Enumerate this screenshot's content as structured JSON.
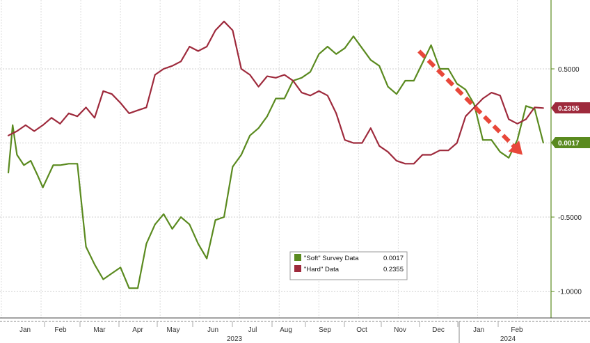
{
  "chart_data": {
    "type": "line",
    "title": "",
    "xlabel": "",
    "ylabel": "",
    "ylim": [
      -1.1,
      0.95
    ],
    "y_ticks": [
      0.5,
      0,
      -0.5,
      -1.0
    ],
    "y_tick_labels": [
      "0.5000",
      "",
      "-0.5000",
      "-1.0000"
    ],
    "x_range": [
      0,
      31.5
    ],
    "month_labels": [
      "Jan",
      "Feb",
      "Mar",
      "Apr",
      "May",
      "Jun",
      "Jul",
      "Aug",
      "Sep",
      "Oct",
      "Nov",
      "Dec",
      "Jan",
      "Feb"
    ],
    "year_labels": [
      {
        "label": "2023",
        "month_index": 6
      },
      {
        "label": "2024",
        "month_index": 12.5
      }
    ],
    "grid": true,
    "legend_position": "bottom-center",
    "series": [
      {
        "name": "\"Soft\" Survey Data",
        "last_label": "0.0017",
        "color": "#5a8a1f",
        "x": [
          0,
          0.25,
          0.5,
          0.9,
          1.3,
          1.7,
          2.0,
          2.6,
          3.0,
          3.5,
          4.0,
          4.5,
          5.0,
          5.5,
          6.0,
          6.5,
          7.0,
          7.5,
          8.0,
          8.5,
          9.0,
          9.5,
          10.0,
          10.5,
          11.0,
          11.5,
          12.0,
          12.5,
          13.0,
          13.5,
          14.0,
          14.5,
          15.0,
          15.5,
          16.0,
          16.5,
          17.0,
          17.5,
          18.0,
          18.5,
          19.0,
          19.5,
          20.0,
          20.5,
          21.0,
          21.5,
          22.0,
          22.5,
          23.0,
          23.5,
          24.0,
          24.5,
          25.0,
          25.5,
          26.0,
          26.5,
          27.0,
          27.5,
          28.0,
          28.5,
          29.0,
          29.5,
          30.0,
          30.5,
          31.0
        ],
        "values": [
          -0.2,
          0.12,
          -0.08,
          -0.15,
          -0.12,
          -0.22,
          -0.3,
          -0.15,
          -0.15,
          -0.14,
          -0.14,
          -0.7,
          -0.82,
          -0.92,
          -0.88,
          -0.84,
          -0.98,
          -0.98,
          -0.68,
          -0.55,
          -0.48,
          -0.58,
          -0.5,
          -0.55,
          -0.68,
          -0.78,
          -0.52,
          -0.5,
          -0.16,
          -0.08,
          0.05,
          0.1,
          0.18,
          0.3,
          0.3,
          0.42,
          0.44,
          0.48,
          0.6,
          0.65,
          0.6,
          0.64,
          0.72,
          0.64,
          0.56,
          0.52,
          0.38,
          0.33,
          0.42,
          0.42,
          0.54,
          0.66,
          0.5,
          0.5,
          0.4,
          0.36,
          0.26,
          0.02,
          0.02,
          -0.06,
          -0.1,
          0.02,
          0.25,
          0.23,
          0.0017
        ]
      },
      {
        "name": "\"Hard\" Data",
        "last_label": "0.2355",
        "color": "#9e2a3c",
        "x": [
          0,
          0.5,
          1.0,
          1.5,
          2.0,
          2.5,
          3.0,
          3.5,
          4.0,
          4.5,
          5.0,
          5.5,
          6.0,
          6.5,
          7.0,
          7.5,
          8.0,
          8.5,
          9.0,
          9.5,
          10.0,
          10.5,
          11.0,
          11.5,
          12.0,
          12.5,
          13.0,
          13.5,
          14.0,
          14.5,
          15.0,
          15.5,
          16.0,
          16.5,
          17.0,
          17.5,
          18.0,
          18.5,
          19.0,
          19.5,
          20.0,
          20.5,
          21.0,
          21.5,
          22.0,
          22.5,
          23.0,
          23.5,
          24.0,
          24.5,
          25.0,
          25.5,
          26.0,
          26.5,
          27.0,
          27.5,
          28.0,
          28.5,
          29.0,
          29.5,
          30.0,
          30.5,
          31.0
        ],
        "values": [
          0.05,
          0.08,
          0.12,
          0.08,
          0.12,
          0.17,
          0.13,
          0.2,
          0.18,
          0.24,
          0.17,
          0.35,
          0.33,
          0.27,
          0.2,
          0.22,
          0.24,
          0.46,
          0.5,
          0.52,
          0.55,
          0.65,
          0.62,
          0.65,
          0.76,
          0.82,
          0.76,
          0.5,
          0.46,
          0.38,
          0.45,
          0.44,
          0.46,
          0.42,
          0.34,
          0.32,
          0.35,
          0.32,
          0.2,
          0.02,
          0.0,
          0.0,
          0.1,
          -0.02,
          -0.06,
          -0.12,
          -0.14,
          -0.14,
          -0.08,
          -0.08,
          -0.05,
          -0.05,
          0.0,
          0.18,
          0.24,
          0.3,
          0.34,
          0.32,
          0.16,
          0.13,
          0.16,
          0.24,
          0.2355
        ]
      }
    ],
    "annotation": {
      "type": "arrow",
      "style": "dashed",
      "color": "#e8473a",
      "from": {
        "x": 23.8,
        "y": 0.62
      },
      "to": {
        "x": 29.8,
        "y": -0.08
      }
    }
  },
  "legend": {
    "items": [
      {
        "name": "\"Soft\" Survey Data",
        "value": "0.0017",
        "color": "#5a8a1f"
      },
      {
        "name": "\"Hard\" Data",
        "value": "0.2355",
        "color": "#9e2a3c"
      }
    ]
  },
  "tags": [
    {
      "value": "0.2355",
      "color": "#9e2a3c"
    },
    {
      "value": "0.0017",
      "color": "#5a8a1f"
    }
  ]
}
